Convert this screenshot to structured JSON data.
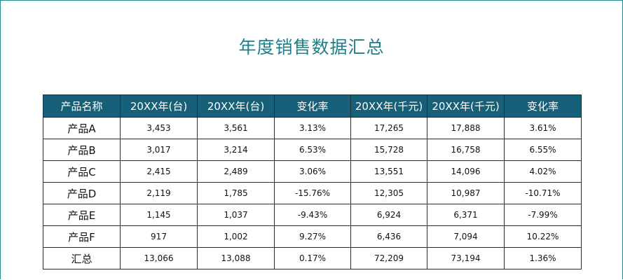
{
  "title": "年度销售数据汇总",
  "table": {
    "headers": [
      "产品名称",
      "20XX年(台)",
      "20XX年(台)",
      "变化率",
      "20XX年(千元)",
      "20XX年(千元)",
      "变化率"
    ],
    "rows": [
      [
        "产品A",
        "3,453",
        "3,561",
        "3.13%",
        "17,265",
        "17,888",
        "3.61%"
      ],
      [
        "产品B",
        "3,017",
        "3,214",
        "6.53%",
        "15,728",
        "16,758",
        "6.55%"
      ],
      [
        "产品C",
        "2,415",
        "2,489",
        "3.06%",
        "13,551",
        "14,096",
        "4.02%"
      ],
      [
        "产品D",
        "2,119",
        "1,785",
        "-15.76%",
        "12,305",
        "10,987",
        "-10.71%"
      ],
      [
        "产品E",
        "1,145",
        "1,037",
        "-9.43%",
        "6,924",
        "6,371",
        "-7.99%"
      ],
      [
        "产品F",
        "917",
        "1,002",
        "9.27%",
        "6,436",
        "7,094",
        "10.22%"
      ],
      [
        "汇总",
        "13,066",
        "13,088",
        "0.17%",
        "72,209",
        "73,194",
        "1.36%"
      ]
    ]
  },
  "colors": {
    "header_background": "#16607a",
    "title_color": "#1e7f8a",
    "border_accent": "#1f8a8f"
  }
}
